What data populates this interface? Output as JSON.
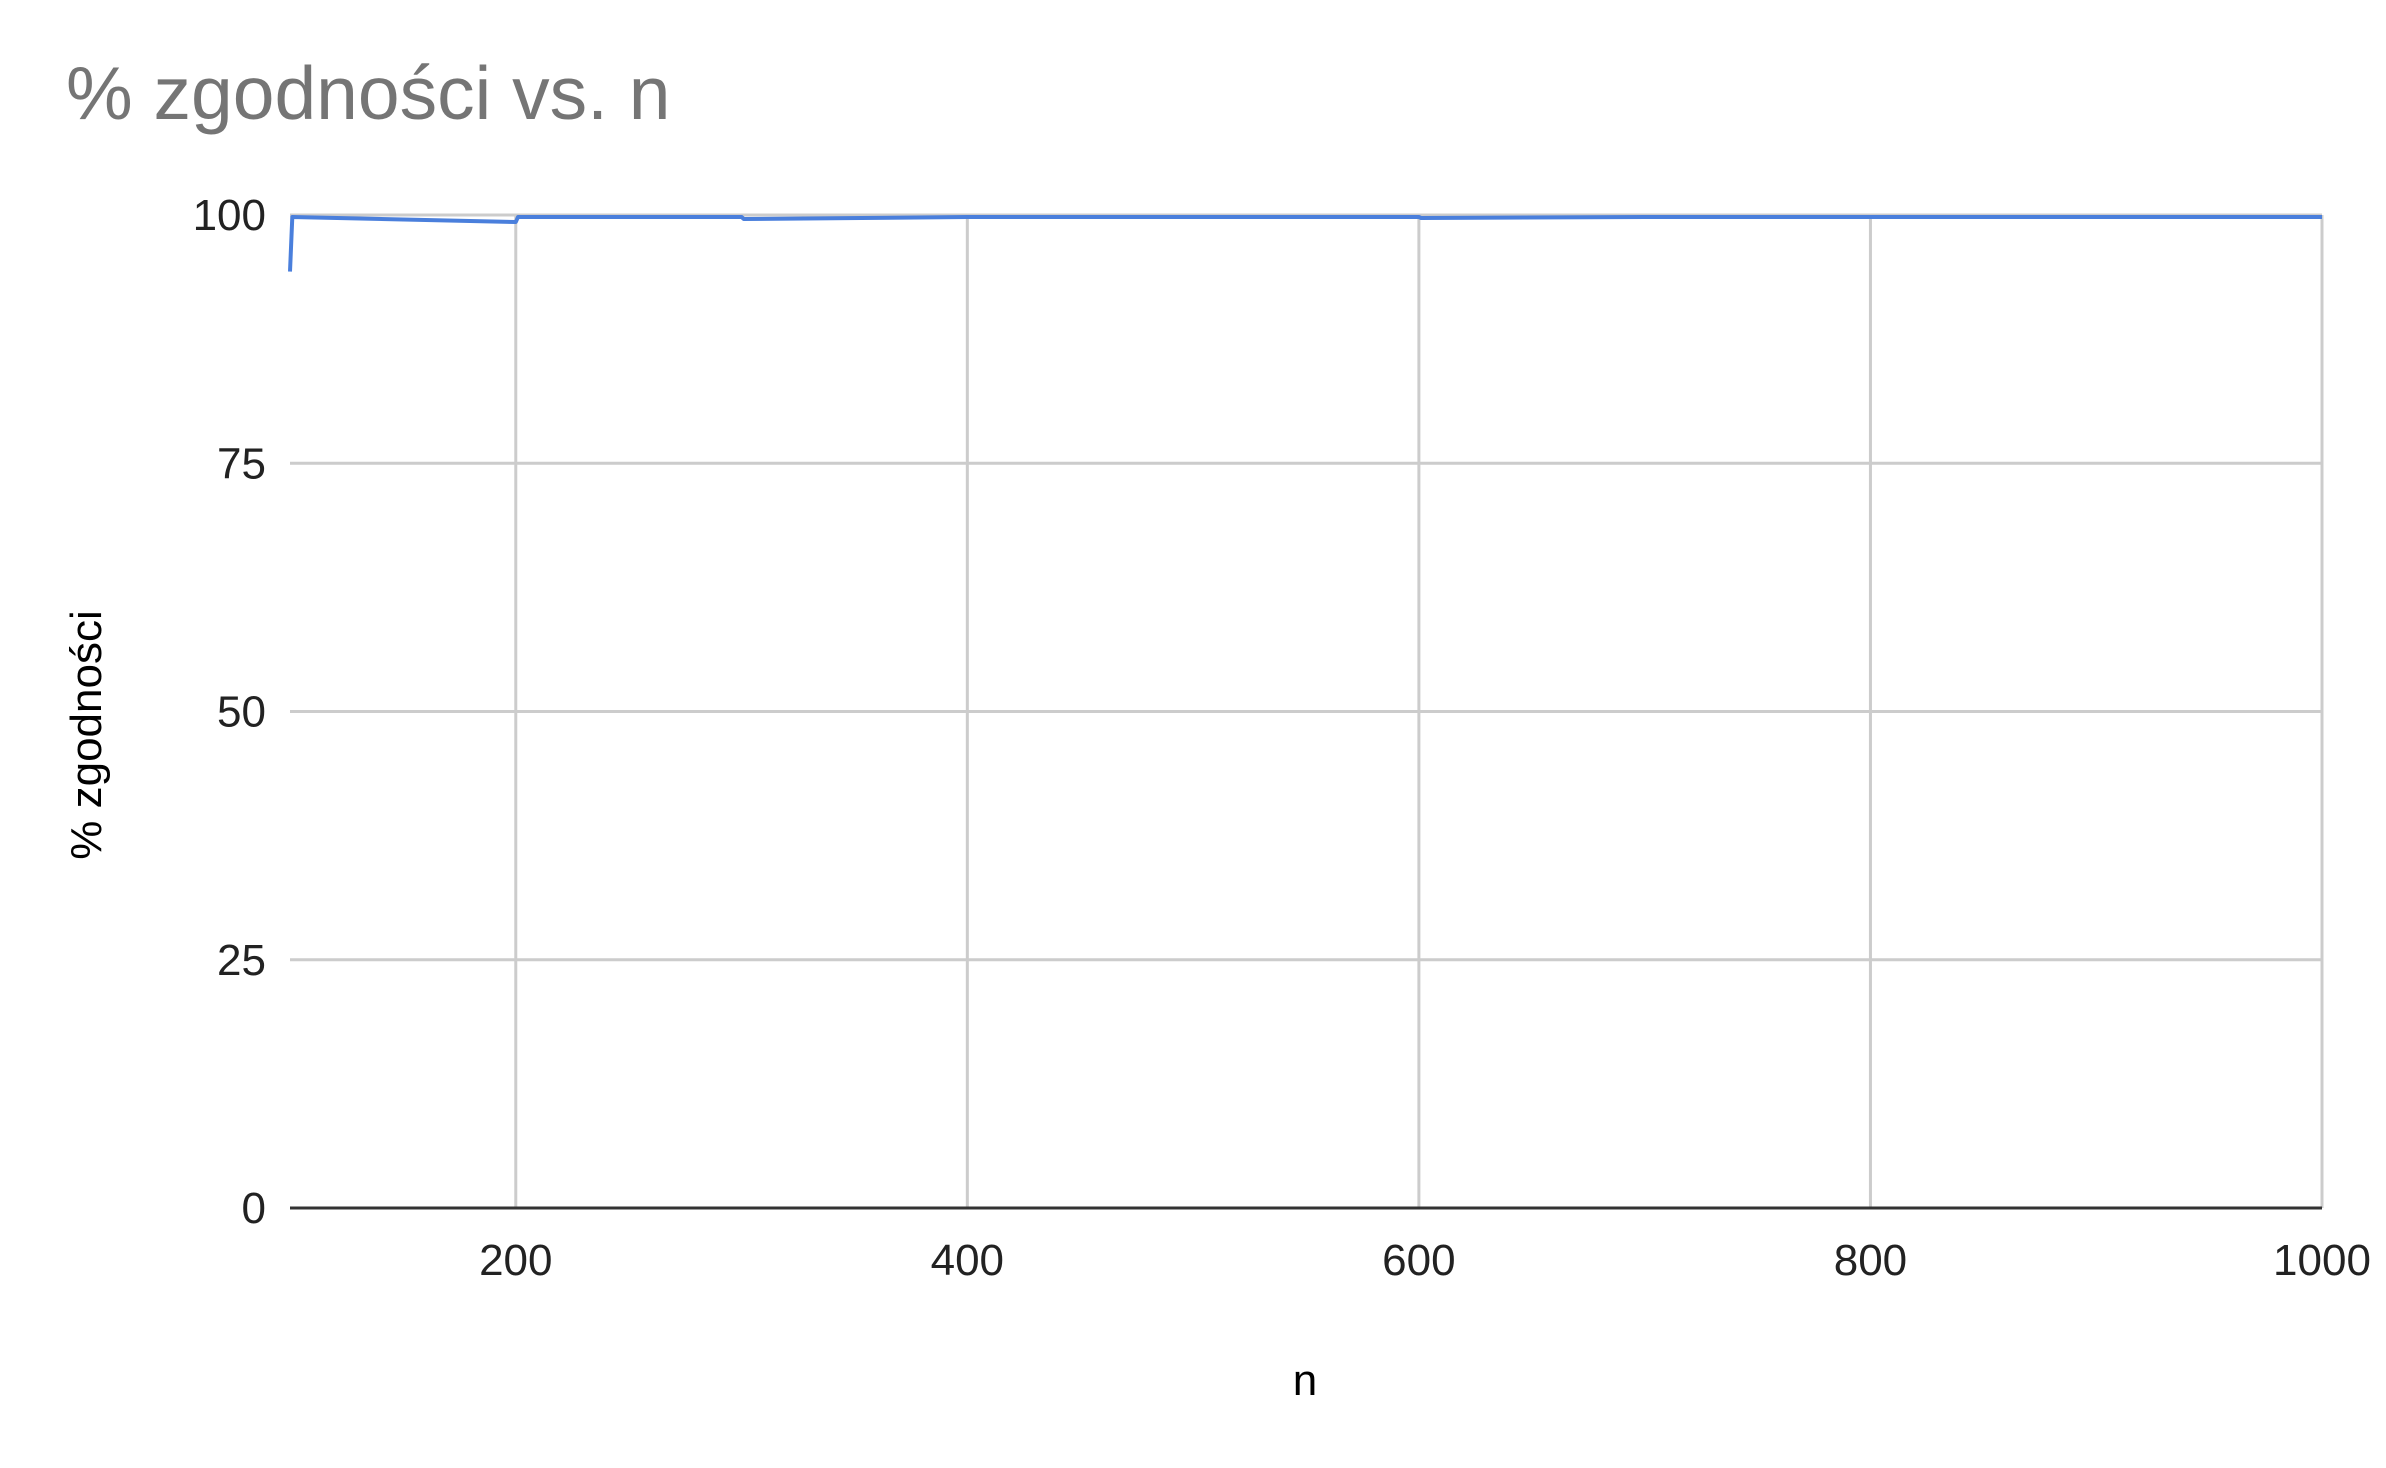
{
  "chart_data": {
    "type": "line",
    "title": "% zgodności vs. n",
    "xlabel": "n",
    "ylabel": "% zgodności",
    "xlim": [
      100,
      1000
    ],
    "ylim": [
      0,
      100
    ],
    "x_ticks": [
      200,
      400,
      600,
      800,
      1000
    ],
    "y_ticks": [
      0,
      25,
      50,
      75,
      100
    ],
    "grid": true,
    "legend": "none",
    "line_color": "#4a7fdc",
    "series": [
      {
        "x": [
          100,
          101,
          200,
          201,
          300,
          301,
          400,
          500,
          600,
          601,
          700,
          800,
          900,
          1000
        ],
        "y": [
          94.3,
          99.8,
          99.3,
          99.8,
          99.8,
          99.6,
          99.8,
          99.8,
          99.8,
          99.7,
          99.8,
          99.8,
          99.8,
          99.8
        ]
      }
    ]
  }
}
